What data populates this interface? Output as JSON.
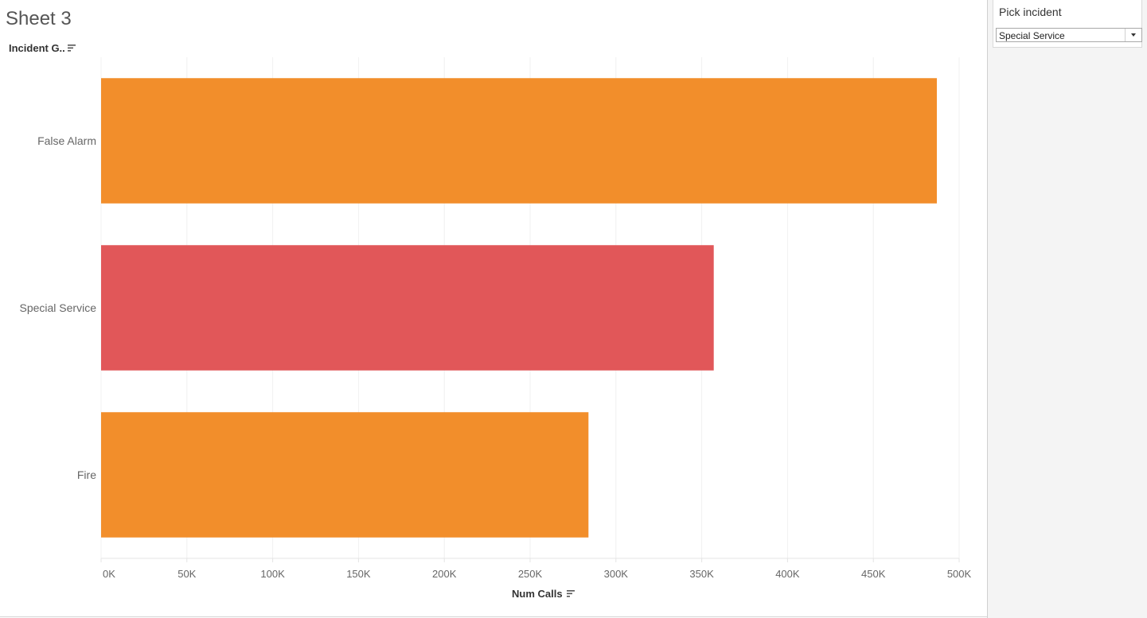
{
  "sheet": {
    "title": "Sheet 3"
  },
  "row_header": {
    "label": "Incident G.."
  },
  "filter": {
    "title": "Pick incident",
    "selected": "Special Service"
  },
  "chart_data": {
    "type": "bar",
    "orientation": "horizontal",
    "categories": [
      "False Alarm",
      "Special Service",
      "Fire"
    ],
    "values": [
      487000,
      357000,
      284000
    ],
    "highlighted": "Special Service",
    "colors": {
      "default": "#f28e2b",
      "highlight": "#e15759"
    },
    "xlabel": "Num Calls",
    "xlim": [
      0,
      500000
    ],
    "xticks": [
      0,
      50000,
      100000,
      150000,
      200000,
      250000,
      300000,
      350000,
      400000,
      450000,
      500000
    ],
    "xtick_labels": [
      "0K",
      "50K",
      "100K",
      "150K",
      "200K",
      "250K",
      "300K",
      "350K",
      "400K",
      "450K",
      "500K"
    ],
    "grid": true
  }
}
